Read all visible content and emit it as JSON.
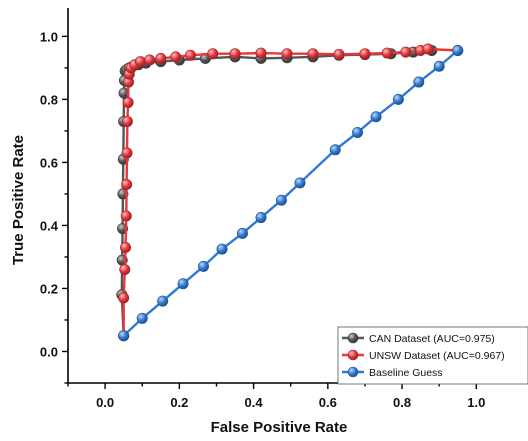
{
  "chart_data": {
    "type": "line",
    "xlabel": "False Positive Rate",
    "ylabel": "True Positive Rate",
    "xlim": [
      -0.1,
      1.08
    ],
    "ylim": [
      -0.1,
      1.09
    ],
    "xticks": [
      "0.0",
      "0.2",
      "0.4",
      "0.6",
      "0.8",
      "1.0"
    ],
    "yticks": [
      "0.0",
      "0.2",
      "0.4",
      "0.6",
      "0.8",
      "1.0"
    ],
    "grid": false,
    "legend_position": "bottom-right",
    "series": [
      {
        "name": "CAN Dataset (AUC=0.975)",
        "color": "#555555",
        "marker": "circle",
        "x": [
          0.05,
          0.045,
          0.046,
          0.047,
          0.048,
          0.049,
          0.05,
          0.051,
          0.052,
          0.054,
          0.058,
          0.065,
          0.075,
          0.09,
          0.11,
          0.15,
          0.2,
          0.27,
          0.35,
          0.42,
          0.49,
          0.56,
          0.63,
          0.7,
          0.77,
          0.83,
          0.88
        ],
        "y": [
          0.05,
          0.18,
          0.29,
          0.39,
          0.5,
          0.61,
          0.73,
          0.82,
          0.86,
          0.89,
          0.895,
          0.9,
          0.905,
          0.91,
          0.915,
          0.92,
          0.925,
          0.93,
          0.935,
          0.93,
          0.932,
          0.935,
          0.94,
          0.942,
          0.945,
          0.95,
          0.955
        ]
      },
      {
        "name": "UNSW Dataset (AUC=0.967)",
        "color": "#e8363c",
        "marker": "circle",
        "x": [
          0.05,
          0.05,
          0.053,
          0.055,
          0.057,
          0.058,
          0.059,
          0.06,
          0.062,
          0.063,
          0.065,
          0.07,
          0.08,
          0.095,
          0.12,
          0.15,
          0.19,
          0.23,
          0.29,
          0.35,
          0.42,
          0.49,
          0.56,
          0.63,
          0.7,
          0.76,
          0.81,
          0.85,
          0.87,
          0.95
        ],
        "y": [
          0.05,
          0.17,
          0.26,
          0.33,
          0.43,
          0.53,
          0.63,
          0.73,
          0.79,
          0.855,
          0.88,
          0.9,
          0.91,
          0.92,
          0.925,
          0.93,
          0.935,
          0.94,
          0.945,
          0.945,
          0.947,
          0.945,
          0.945,
          0.943,
          0.945,
          0.947,
          0.95,
          0.955,
          0.96,
          0.955
        ]
      },
      {
        "name": "Baseline Guess",
        "color": "#2f7ad6",
        "marker": "circle",
        "x": [
          0.05,
          0.1,
          0.155,
          0.21,
          0.265,
          0.315,
          0.37,
          0.42,
          0.475,
          0.525,
          0.62,
          0.68,
          0.73,
          0.79,
          0.845,
          0.9,
          0.95
        ],
        "y": [
          0.05,
          0.105,
          0.16,
          0.215,
          0.27,
          0.325,
          0.375,
          0.425,
          0.48,
          0.535,
          0.64,
          0.695,
          0.745,
          0.8,
          0.855,
          0.905,
          0.955
        ]
      }
    ]
  }
}
